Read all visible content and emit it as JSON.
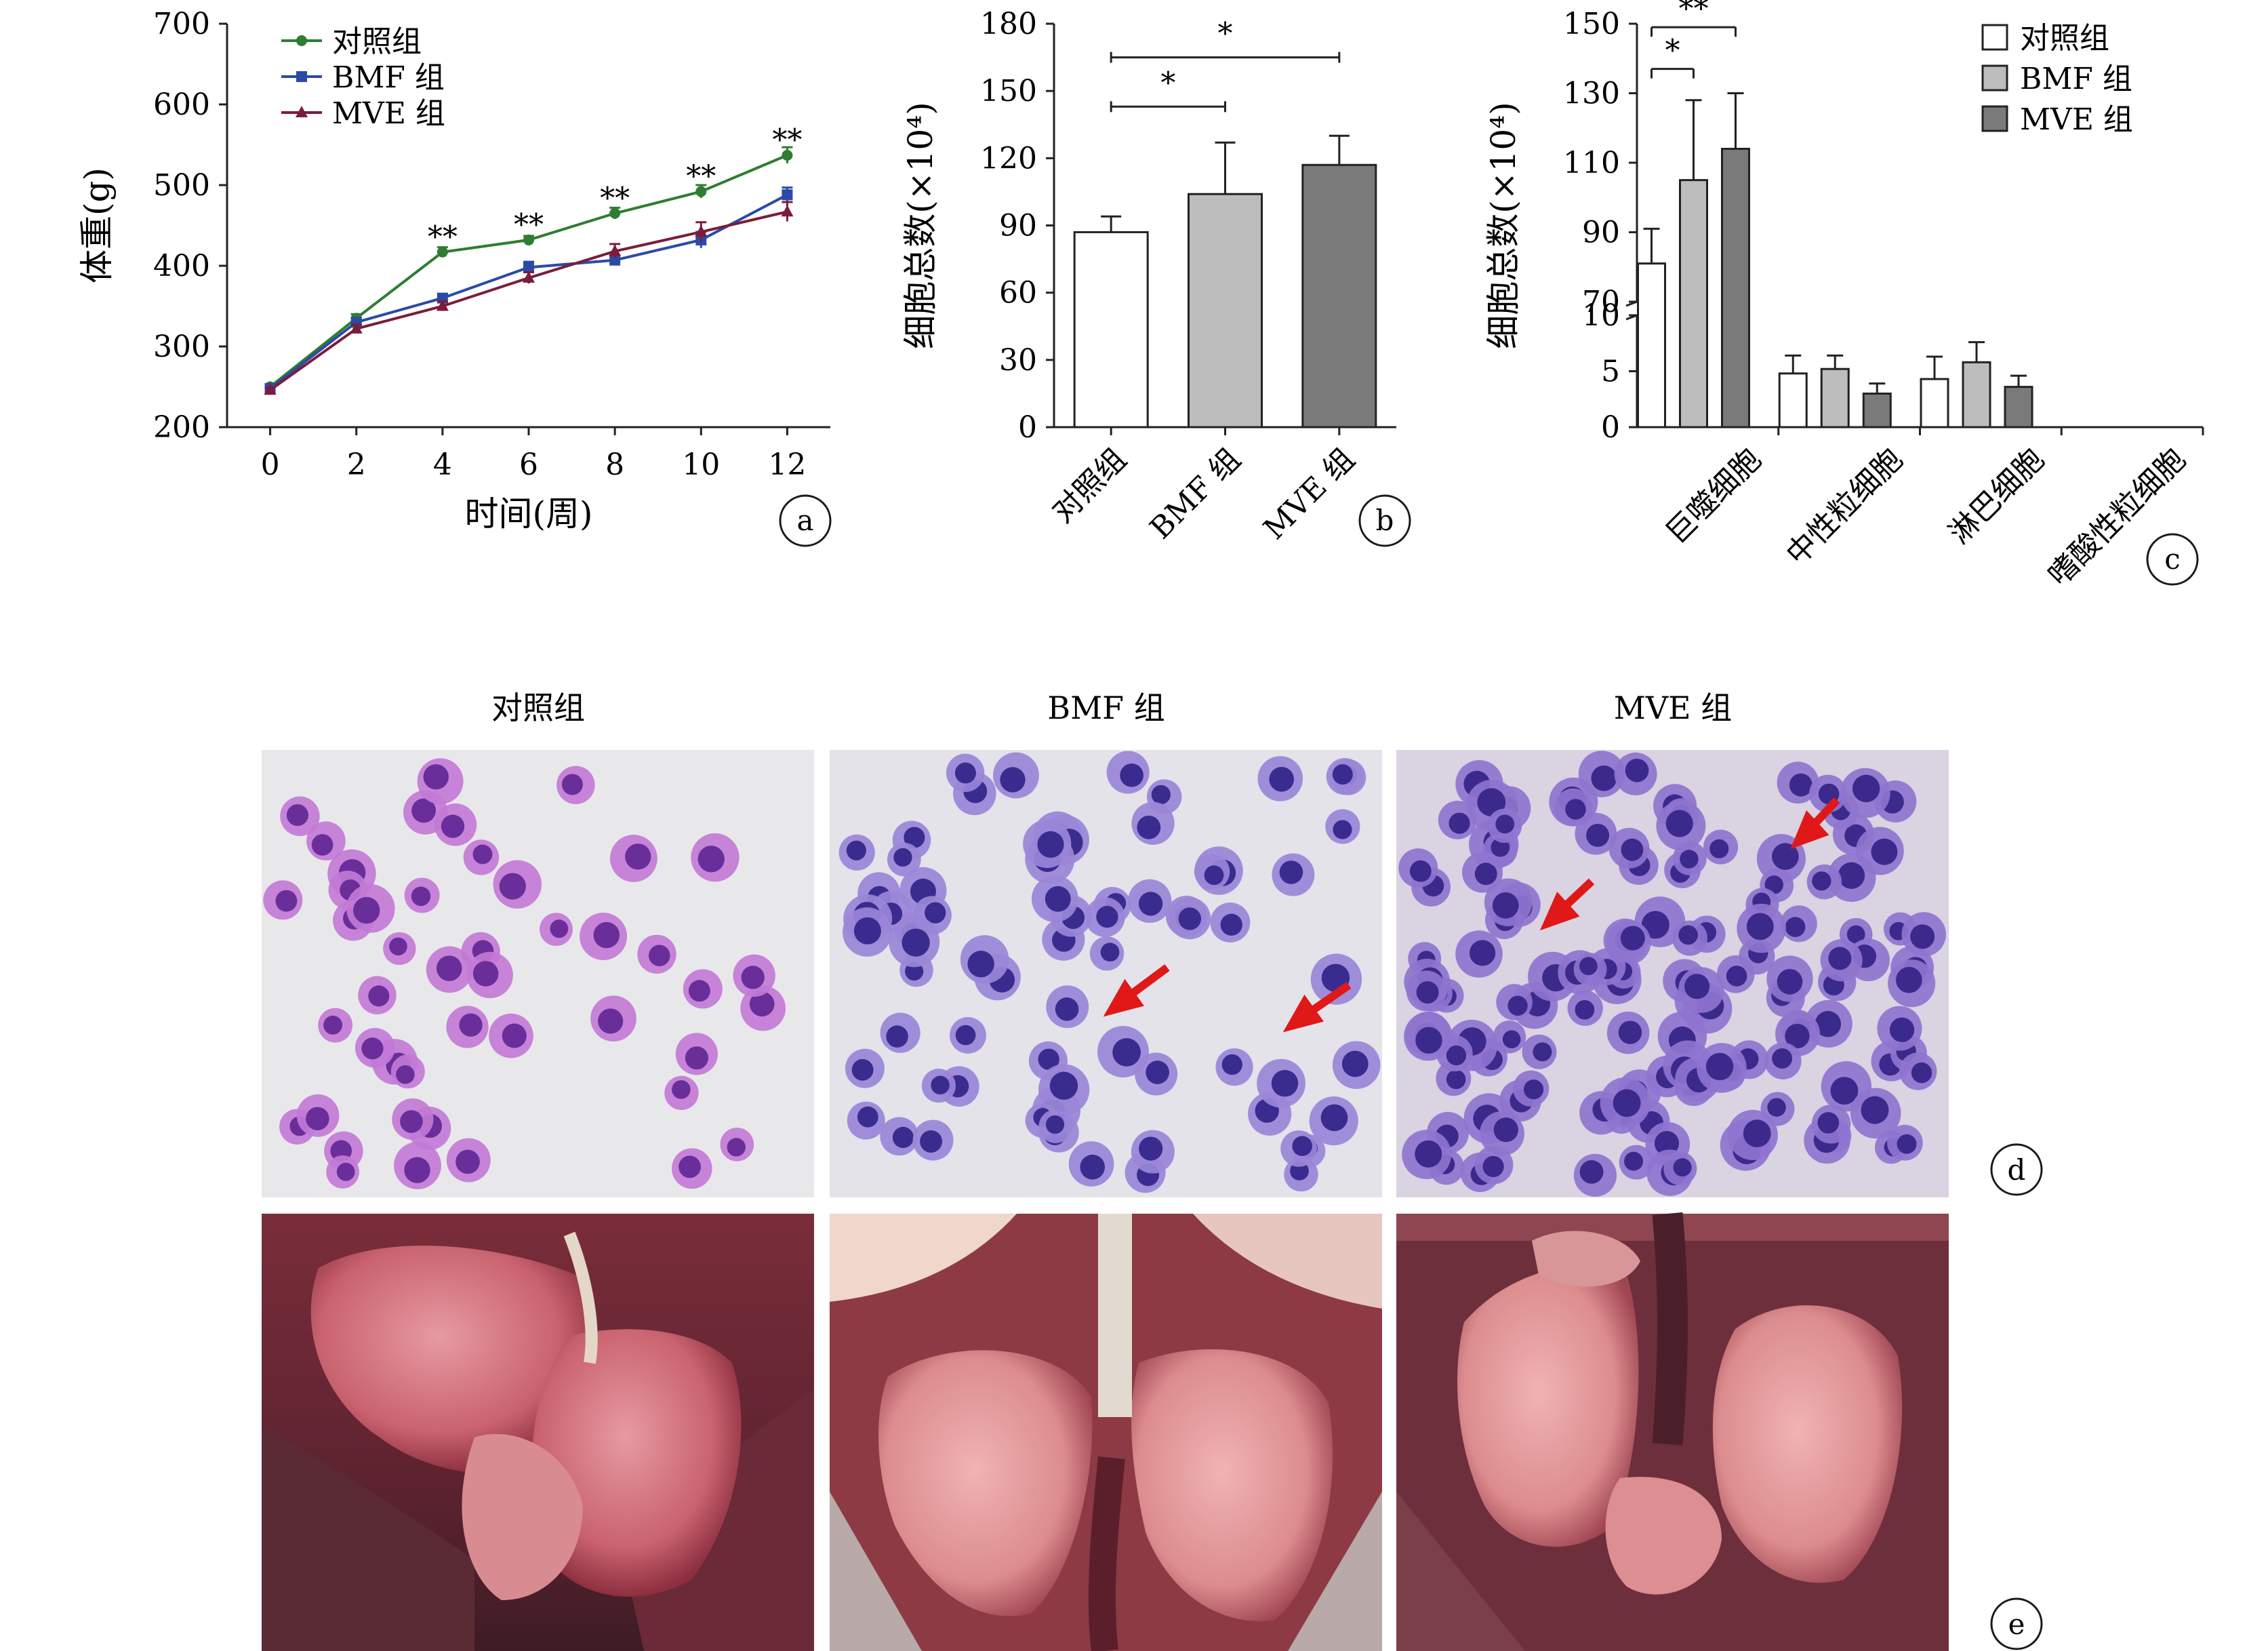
{
  "chart_data": [
    {
      "panel": "a",
      "type": "line",
      "ylabel": "体重(g)",
      "xlabel": "时间(周)",
      "x": [
        0,
        2,
        4,
        6,
        8,
        10,
        12
      ],
      "xlim": [
        -1,
        13
      ],
      "ylim": [
        200,
        700
      ],
      "yticks": [
        200,
        300,
        400,
        500,
        600,
        700
      ],
      "series": [
        {
          "name": "对照组",
          "color": "#2e7d32",
          "marker": "circle",
          "values": [
            250,
            335,
            417,
            432,
            465,
            492,
            537
          ],
          "errors": [
            3,
            5,
            6,
            5,
            7,
            8,
            10
          ]
        },
        {
          "name": "BMF 组",
          "color": "#2b4aa8",
          "marker": "square",
          "values": [
            248,
            330,
            360,
            398,
            407,
            432,
            488
          ],
          "errors": [
            3,
            5,
            5,
            7,
            6,
            10,
            9
          ]
        },
        {
          "name": "MVE 组",
          "color": "#7b1d3a",
          "marker": "triangle",
          "values": [
            246,
            322,
            350,
            385,
            418,
            442,
            467
          ],
          "errors": [
            3,
            5,
            6,
            7,
            9,
            12,
            12
          ]
        }
      ],
      "significance": [
        {
          "x": 4,
          "y": 440,
          "label": "**"
        },
        {
          "x": 6,
          "y": 455,
          "label": "**"
        },
        {
          "x": 8,
          "y": 488,
          "label": "**"
        },
        {
          "x": 10,
          "y": 515,
          "label": "**"
        },
        {
          "x": 12,
          "y": 560,
          "label": "**"
        }
      ],
      "legend_position": "top-left"
    },
    {
      "panel": "b",
      "type": "bar",
      "ylabel": "细胞总数(×10⁴)",
      "categories": [
        "对照组",
        "BMF 组",
        "MVE 组"
      ],
      "values": [
        87,
        104,
        117
      ],
      "errors": [
        7,
        23,
        13
      ],
      "colors": [
        "#ffffff",
        "#bdbdbd",
        "#7a7a7a"
      ],
      "ylim": [
        0,
        180
      ],
      "yticks": [
        0,
        30,
        60,
        90,
        120,
        150,
        180
      ],
      "significance": [
        {
          "from": 0,
          "to": 1,
          "y": 143,
          "label": "*"
        },
        {
          "from": 0,
          "to": 2,
          "y": 165,
          "label": "*"
        }
      ]
    },
    {
      "panel": "c",
      "type": "bar",
      "ylabel": "细胞总数(×10⁴)",
      "categories": [
        "巨噬细胞",
        "中性粒细胞",
        "淋巴细胞",
        "嗜酸性粒细胞"
      ],
      "yticks_lower": [
        0,
        5,
        10
      ],
      "yticks_upper": [
        70,
        90,
        110,
        130,
        150
      ],
      "axis_break": true,
      "series": [
        {
          "name": "对照组",
          "color": "#ffffff",
          "values": [
            81,
            4.8,
            4.3,
            0
          ],
          "errors": [
            10,
            1.6,
            2.0,
            0
          ]
        },
        {
          "name": "BMF 组",
          "color": "#bdbdbd",
          "values": [
            105,
            5.2,
            5.8,
            0
          ],
          "errors": [
            23,
            1.2,
            1.8,
            0
          ]
        },
        {
          "name": "MVE 组",
          "color": "#7a7a7a",
          "values": [
            114,
            3.0,
            3.6,
            0
          ],
          "errors": [
            16,
            0.9,
            1.0,
            0
          ]
        }
      ],
      "significance": [
        {
          "from": 0,
          "to": 1,
          "y": 137,
          "label": "*"
        },
        {
          "from": 0,
          "to": 2,
          "y": 149,
          "label": "**"
        }
      ],
      "legend_position": "top-right"
    }
  ],
  "panels": {
    "a": "a",
    "b": "b",
    "c": "c",
    "d": "d",
    "e": "e"
  },
  "photo_titles": [
    "对照组",
    "BMF 组",
    "MVE 组"
  ]
}
